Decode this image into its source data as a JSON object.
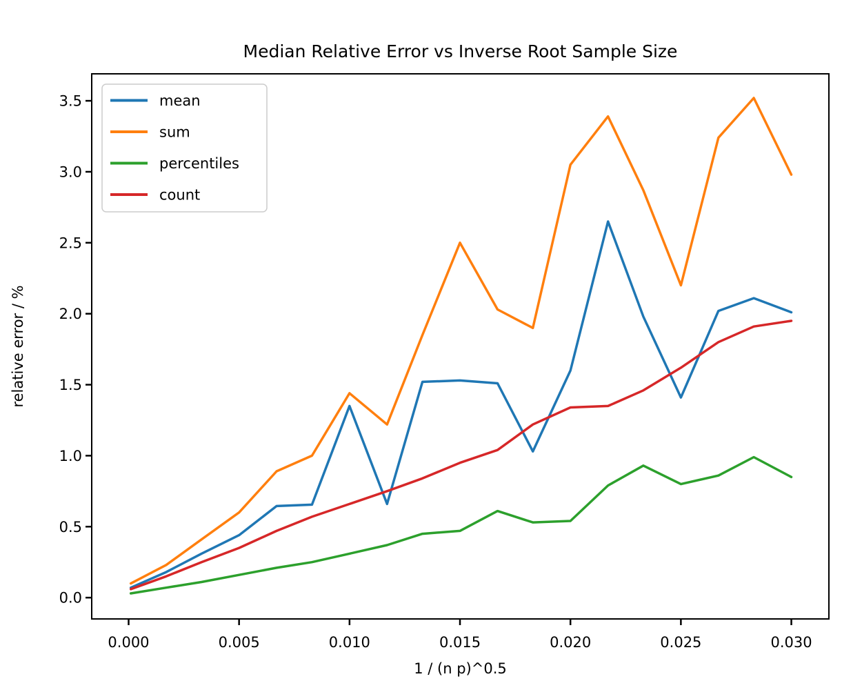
{
  "chart_data": {
    "type": "line",
    "title": "Median Relative Error vs Inverse Root Sample Size",
    "xlabel": "1 / (n p)^0.5",
    "ylabel": "relative error / %",
    "grid": false,
    "legend_position": "upper left",
    "xlim": [
      -0.00167,
      0.0317
    ],
    "ylim": [
      -0.15,
      3.69
    ],
    "xticks": [
      0.0,
      0.005,
      0.01,
      0.015,
      0.02,
      0.025,
      0.03
    ],
    "yticks": [
      0.0,
      0.5,
      1.0,
      1.5,
      2.0,
      2.5,
      3.0,
      3.5
    ],
    "x": [
      0.0001,
      0.0017,
      0.0033,
      0.005,
      0.0067,
      0.0083,
      0.01,
      0.0117,
      0.0133,
      0.015,
      0.0167,
      0.0183,
      0.02,
      0.0217,
      0.0233,
      0.025,
      0.0267,
      0.0283,
      0.03
    ],
    "series": [
      {
        "name": "mean",
        "color": "#1f77b4",
        "values": [
          0.07,
          0.18,
          0.31,
          0.44,
          0.645,
          0.655,
          1.35,
          0.66,
          1.52,
          1.53,
          1.51,
          1.03,
          1.6,
          2.65,
          1.98,
          1.41,
          2.02,
          2.11,
          2.01
        ]
      },
      {
        "name": "sum",
        "color": "#ff7f0e",
        "values": [
          0.1,
          0.23,
          0.41,
          0.6,
          0.89,
          1.0,
          1.44,
          1.22,
          1.85,
          2.5,
          2.03,
          1.9,
          3.05,
          3.39,
          2.87,
          2.2,
          3.24,
          3.52,
          2.98
        ]
      },
      {
        "name": "percentiles",
        "color": "#2ca02c",
        "values": [
          0.03,
          0.07,
          0.11,
          0.16,
          0.21,
          0.25,
          0.31,
          0.37,
          0.45,
          0.47,
          0.61,
          0.53,
          0.54,
          0.79,
          0.93,
          0.8,
          0.86,
          0.99,
          0.85
        ]
      },
      {
        "name": "count",
        "color": "#d62728",
        "values": [
          0.06,
          0.15,
          0.25,
          0.35,
          0.47,
          0.57,
          0.66,
          0.75,
          0.84,
          0.95,
          1.04,
          1.22,
          1.34,
          1.35,
          1.46,
          1.62,
          1.8,
          1.91,
          1.95
        ]
      }
    ]
  }
}
